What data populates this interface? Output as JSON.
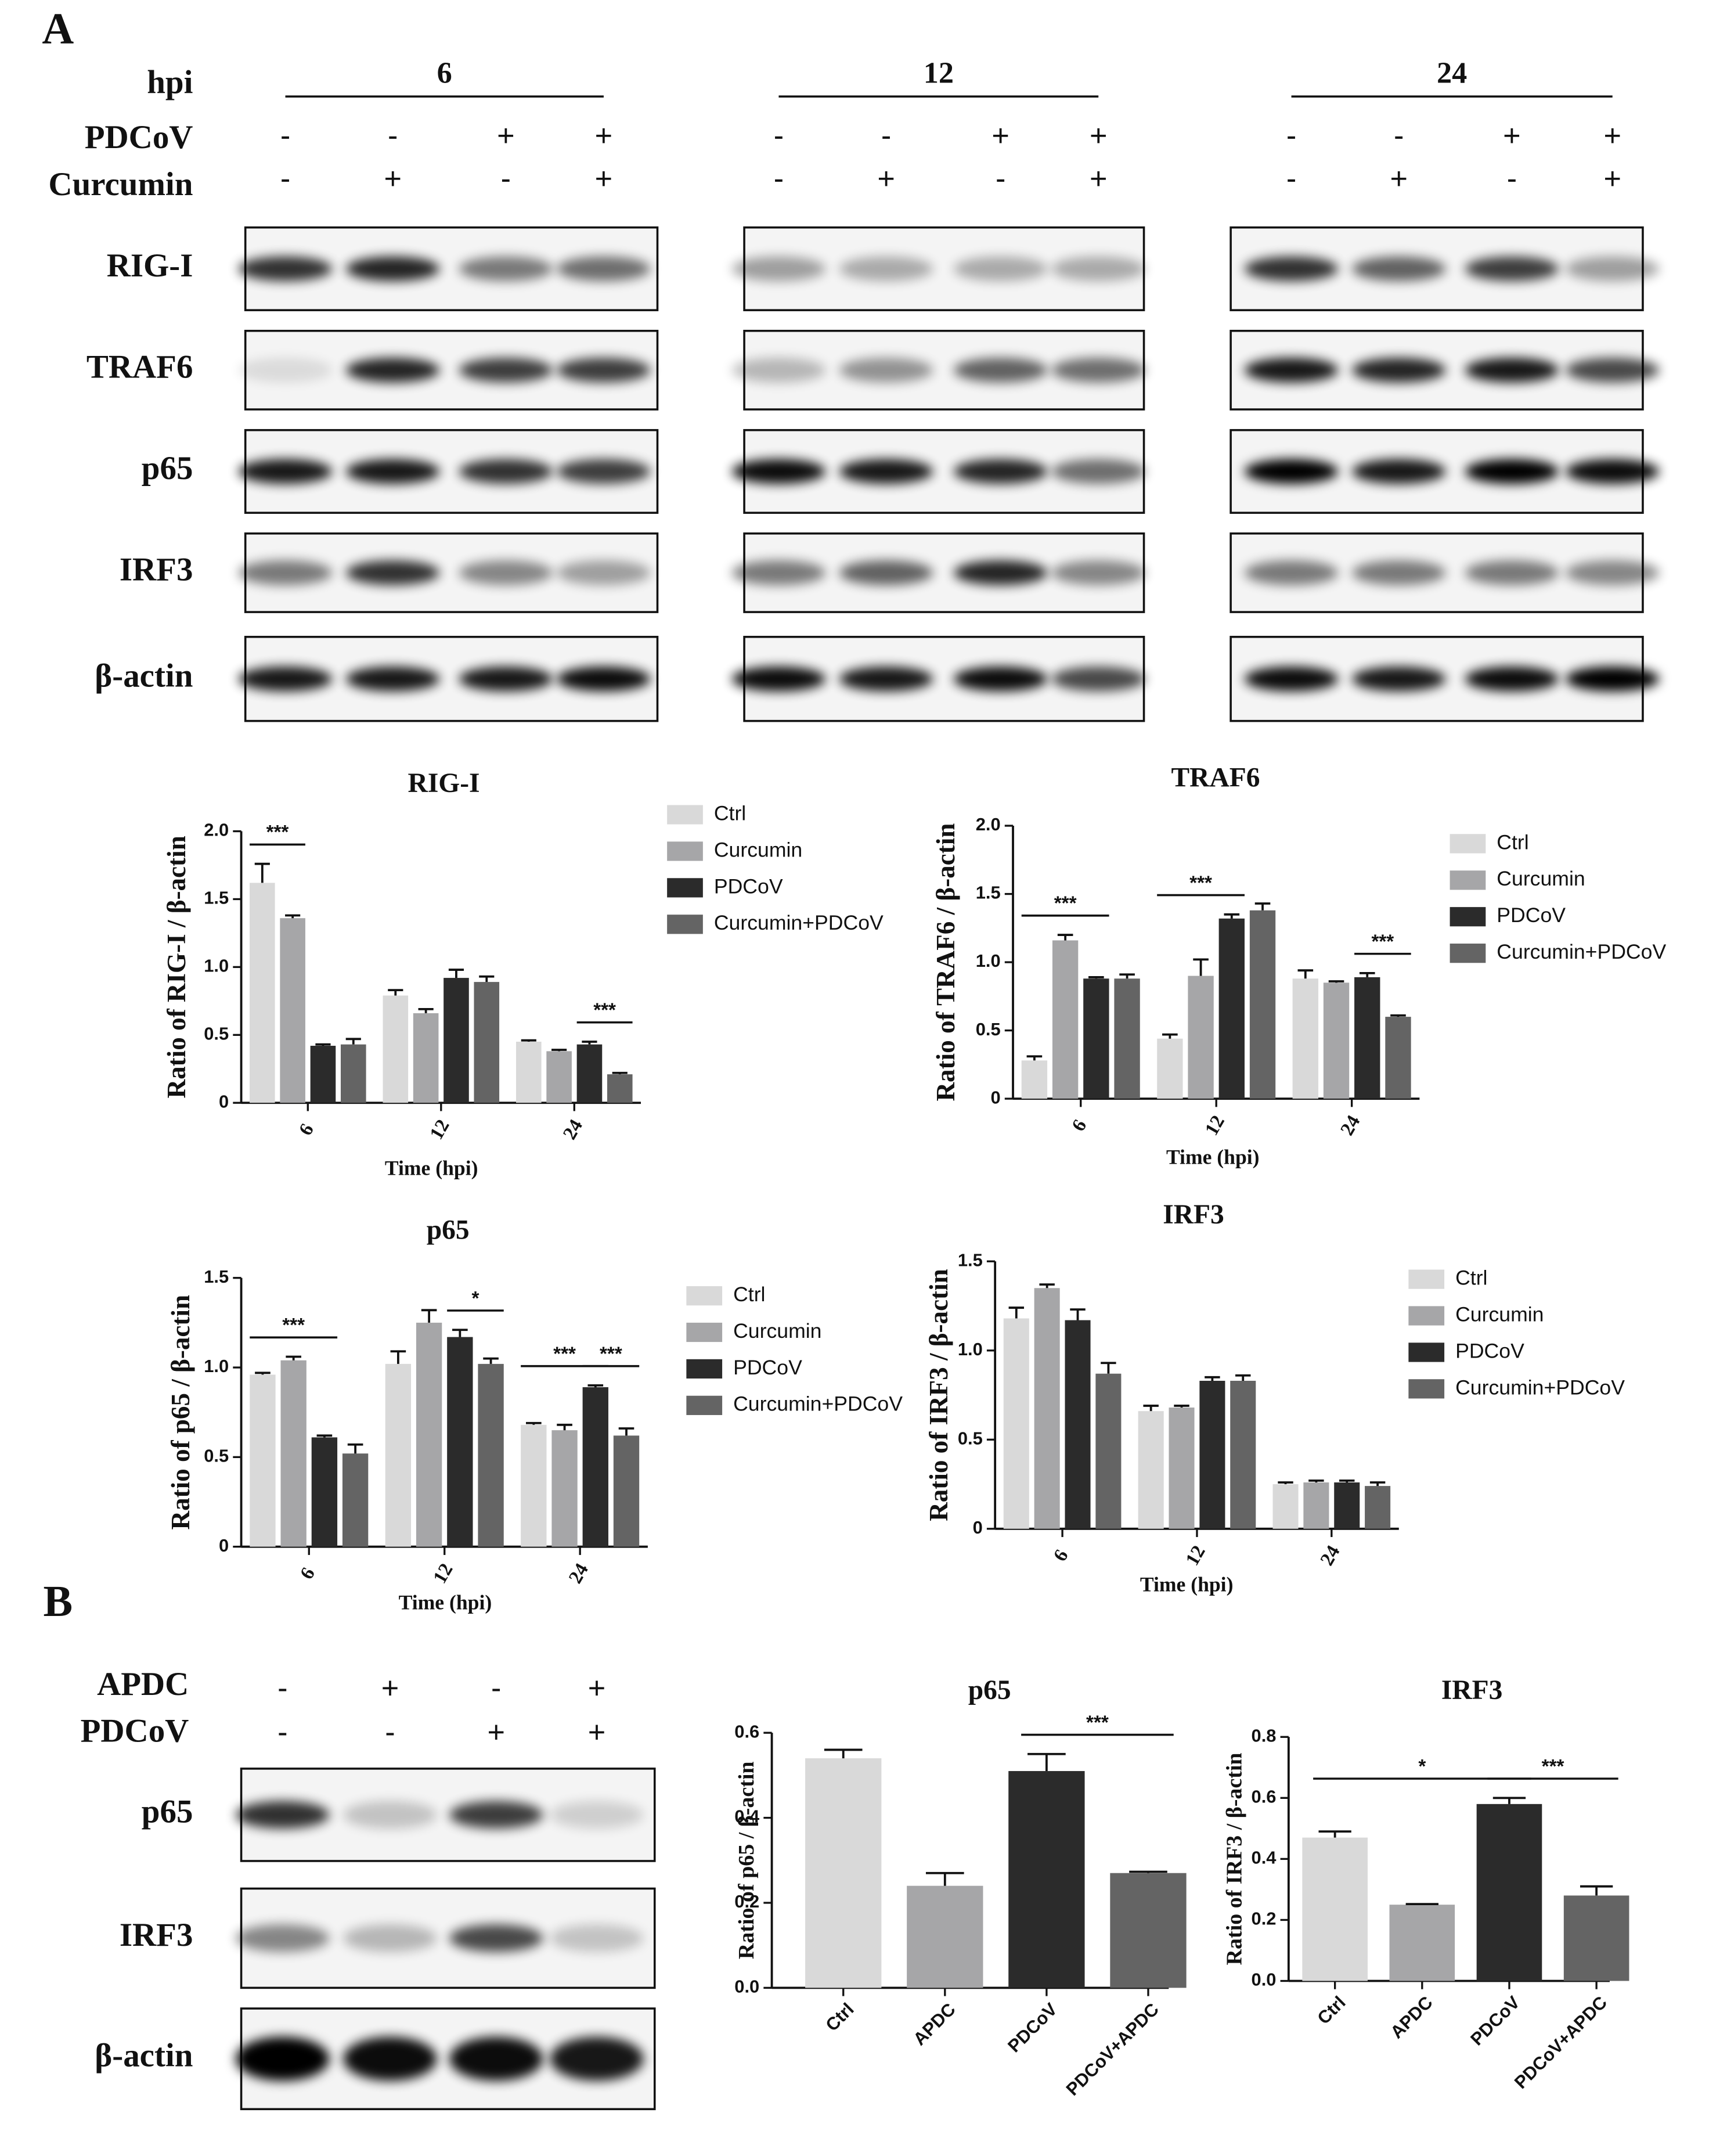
{
  "panel_a": {
    "label": "A",
    "row_labels": [
      "hpi",
      "PDCoV",
      "Curcumin"
    ],
    "groups": [
      {
        "hpi": "6",
        "pdcov": [
          "-",
          "-",
          "+",
          "+"
        ],
        "curcumin": [
          "-",
          "+",
          "-",
          "+"
        ]
      },
      {
        "hpi": "12",
        "pdcov": [
          "-",
          "-",
          "+",
          "+"
        ],
        "curcumin": [
          "-",
          "+",
          "-",
          "+"
        ]
      },
      {
        "hpi": "24",
        "pdcov": [
          "-",
          "-",
          "+",
          "+"
        ],
        "curcumin": [
          "-",
          "+",
          "-",
          "+"
        ]
      }
    ],
    "blots": [
      "RIG-I",
      "TRAF6",
      "p65",
      "IRF3",
      "β-actin"
    ]
  },
  "panel_b": {
    "label": "B",
    "row_labels": [
      "APDC",
      "PDCoV"
    ],
    "apdc": [
      "-",
      "+",
      "-",
      "+"
    ],
    "pdcov": [
      "-",
      "-",
      "+",
      "+"
    ],
    "blots": [
      "p65",
      "IRF3",
      "β-actin"
    ]
  },
  "chart_data": [
    {
      "type": "bar",
      "title": "RIG-I",
      "x_label": "Time (hpi)",
      "y_label": "Ratio of RIG-I / β-actin",
      "categories": [
        "6",
        "12",
        "24"
      ],
      "series": [
        {
          "name": "Ctrl",
          "color": "#d9d9d9",
          "values": [
            1.62,
            0.79,
            0.45
          ],
          "errors": [
            0.14,
            0.04,
            0.01
          ]
        },
        {
          "name": "Curcumin",
          "color": "#a6a6a8",
          "values": [
            1.36,
            0.66,
            0.38
          ],
          "errors": [
            0.02,
            0.03,
            0.01
          ]
        },
        {
          "name": "PDCoV",
          "color": "#2b2b2b",
          "values": [
            0.42,
            0.92,
            0.43
          ],
          "errors": [
            0.01,
            0.06,
            0.02
          ]
        },
        {
          "name": "Curcumin+PDCoV",
          "color": "#646464",
          "values": [
            0.43,
            0.89,
            0.21
          ],
          "errors": [
            0.04,
            0.04,
            0.01
          ]
        }
      ],
      "ylim": [
        0,
        2
      ],
      "yticks": [
        0,
        0.5,
        {
          "value": 1,
          "label": "1.0"
        },
        1.5,
        {
          "value": 2,
          "label": "2.0"
        }
      ],
      "annotations": [
        {
          "text": "***",
          "category": 0,
          "from": 0,
          "to": 1
        },
        {
          "text": "***",
          "category": 2,
          "from": 2,
          "to": 3
        }
      ]
    },
    {
      "type": "bar",
      "title": "TRAF6",
      "x_label": "Time (hpi)",
      "y_label": "Ratio of TRAF6 / β-actin",
      "categories": [
        "6",
        "12",
        "24"
      ],
      "series": [
        {
          "name": "Ctrl",
          "color": "#d9d9d9",
          "values": [
            0.28,
            0.44,
            0.88
          ],
          "errors": [
            0.03,
            0.03,
            0.06
          ]
        },
        {
          "name": "Curcumin",
          "color": "#a6a6a8",
          "values": [
            1.16,
            0.9,
            0.85
          ],
          "errors": [
            0.04,
            0.12,
            0.01
          ]
        },
        {
          "name": "PDCoV",
          "color": "#2b2b2b",
          "values": [
            0.88,
            1.32,
            0.89
          ],
          "errors": [
            0.01,
            0.03,
            0.03
          ]
        },
        {
          "name": "Curcumin+PDCoV",
          "color": "#646464",
          "values": [
            0.88,
            1.38,
            0.6
          ],
          "errors": [
            0.03,
            0.05,
            0.01
          ]
        }
      ],
      "ylim": [
        0,
        2
      ],
      "yticks": [
        0,
        0.5,
        {
          "value": 1,
          "label": "1.0"
        },
        1.5,
        {
          "value": 2,
          "label": "2.0"
        }
      ],
      "annotations": [
        {
          "text": "***",
          "category": 0,
          "from": 0,
          "to": 2
        },
        {
          "text": "***",
          "category": 1,
          "from": 0,
          "to": 2
        },
        {
          "text": "***",
          "category": 2,
          "from": 2,
          "to": 3
        }
      ]
    },
    {
      "type": "bar",
      "title": "p65",
      "x_label": "Time (hpi)",
      "y_label": "Ratio of p65 / β-actin",
      "categories": [
        "6",
        "12",
        "24"
      ],
      "series": [
        {
          "name": "Ctrl",
          "color": "#d9d9d9",
          "values": [
            0.96,
            1.02,
            0.68
          ],
          "errors": [
            0.01,
            0.07,
            0.01
          ]
        },
        {
          "name": "Curcumin",
          "color": "#a6a6a8",
          "values": [
            1.04,
            1.25,
            0.65
          ],
          "errors": [
            0.02,
            0.07,
            0.03
          ]
        },
        {
          "name": "PDCoV",
          "color": "#2b2b2b",
          "values": [
            0.61,
            1.17,
            0.89
          ],
          "errors": [
            0.01,
            0.04,
            0.01
          ]
        },
        {
          "name": "Curcumin+PDCoV",
          "color": "#646464",
          "values": [
            0.52,
            1.02,
            0.62
          ],
          "errors": [
            0.05,
            0.03,
            0.04
          ]
        }
      ],
      "ylim": [
        0,
        1.5
      ],
      "yticks": [
        0,
        0.5,
        {
          "value": 1,
          "label": "1.0"
        },
        1.5
      ],
      "annotations": [
        {
          "text": "***",
          "category": 0,
          "from": 0,
          "to": 2
        },
        {
          "text": "*",
          "category": 1,
          "from": 2,
          "to": 3
        },
        {
          "text": "***",
          "category": 2,
          "from": 0,
          "to": 2
        },
        {
          "text": "***",
          "category": 2,
          "from": 2,
          "to": 3
        }
      ]
    },
    {
      "type": "bar",
      "title": "IRF3",
      "x_label": "Time (hpi)",
      "y_label": "Ratio of IRF3 / β-actin",
      "categories": [
        "6",
        "12",
        "24"
      ],
      "series": [
        {
          "name": "Ctrl",
          "color": "#d9d9d9",
          "values": [
            1.18,
            0.66,
            0.25
          ],
          "errors": [
            0.06,
            0.03,
            0.01
          ]
        },
        {
          "name": "Curcumin",
          "color": "#a6a6a8",
          "values": [
            1.35,
            0.68,
            0.26
          ],
          "errors": [
            0.02,
            0.01,
            0.01
          ]
        },
        {
          "name": "PDCoV",
          "color": "#2b2b2b",
          "values": [
            1.17,
            0.83,
            0.26
          ],
          "errors": [
            0.06,
            0.02,
            0.01
          ]
        },
        {
          "name": "Curcumin+PDCoV",
          "color": "#646464",
          "values": [
            0.87,
            0.83,
            0.24
          ],
          "errors": [
            0.06,
            0.03,
            0.02
          ]
        }
      ],
      "ylim": [
        0,
        1.5
      ],
      "yticks": [
        0,
        0.5,
        {
          "value": 1,
          "label": "1.0"
        },
        1.5
      ],
      "annotations": []
    },
    {
      "type": "bar",
      "title": "p65",
      "y_label": "Ratio of p65 / β-actin",
      "categories": [
        "Ctrl",
        "APDC",
        "PDCoV",
        "PDCoV+APDC"
      ],
      "values": [
        0.54,
        0.24,
        0.51,
        0.27
      ],
      "errors": [
        0.02,
        0.03,
        0.04,
        0.003
      ],
      "colors": [
        "#d9d9d9",
        "#a6a6a8",
        "#2b2b2b",
        "#646464"
      ],
      "ylim": [
        0,
        0.6
      ],
      "yticks": [
        {
          "value": 0,
          "label": "0.0"
        },
        0.2,
        0.4,
        0.6
      ],
      "annotations": [
        {
          "text": "***",
          "from": 2,
          "to": 3
        }
      ]
    },
    {
      "type": "bar",
      "title": "IRF3",
      "y_label": "Ratio of IRF3 / β-actin",
      "categories": [
        "Ctrl",
        "APDC",
        "PDCoV",
        "PDCoV+APDC"
      ],
      "values": [
        0.47,
        0.25,
        0.58,
        0.28
      ],
      "errors": [
        0.02,
        0.002,
        0.02,
        0.03
      ],
      "colors": [
        "#d9d9d9",
        "#a6a6a8",
        "#2b2b2b",
        "#646464"
      ],
      "ylim": [
        0,
        0.8
      ],
      "yticks": [
        {
          "value": 0,
          "label": "0.0"
        },
        0.2,
        0.4,
        0.6,
        0.8
      ],
      "annotations": [
        {
          "text": "*",
          "from": 0,
          "to": 2
        },
        {
          "text": "***",
          "from": 2,
          "to": 3
        }
      ]
    }
  ]
}
